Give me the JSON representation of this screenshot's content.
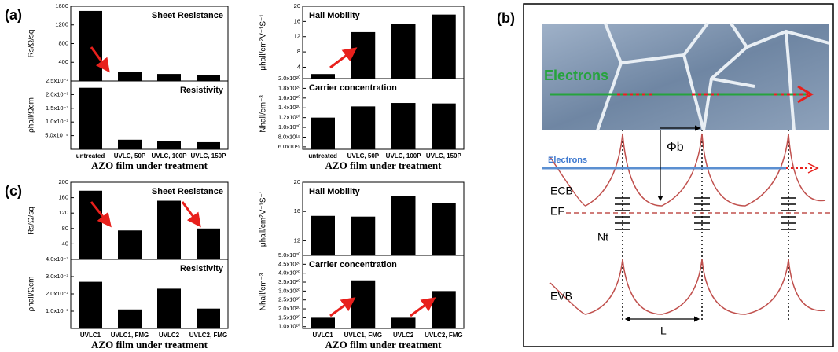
{
  "chart_data": [
    {
      "type": "bar",
      "panel": "(a)",
      "annotation": "Sheet Resistance",
      "ylabel": "Rs/Ω/sq",
      "color": "#000000",
      "categories": [
        null,
        null,
        null,
        null
      ],
      "values": [
        1500,
        190,
        150,
        130
      ],
      "ylim": [
        0,
        1600
      ],
      "yticks": [
        400,
        800,
        1200,
        1600
      ]
    },
    {
      "type": "bar",
      "annotation": "Resistivity",
      "ylabel": "ρhall/Ωcm",
      "xlabel": "AZO film under treatment",
      "color": "#000000",
      "categories": [
        "untreated",
        "UVLC, 50P",
        "UVLC, 100P",
        "UVLC, 150P"
      ],
      "values": [
        0.00225,
        0.00035,
        0.0003,
        0.00026
      ],
      "ylim": [
        0,
        0.0025
      ],
      "yticks": [
        {
          "value": 0.0005,
          "label": "5.0x10⁻⁴"
        },
        {
          "value": 0.001,
          "label": "1.0x10⁻³"
        },
        {
          "value": 0.0015,
          "label": "1.5x10⁻³"
        },
        {
          "value": 0.002,
          "label": "2.0x10⁻³"
        },
        {
          "value": 0.0025,
          "label": "2.5x10⁻³"
        }
      ]
    },
    {
      "type": "bar",
      "annotation": "Hall Mobility",
      "ylabel": "μhall/cm²V⁻¹S⁻¹",
      "color": "#000000",
      "categories": [
        null,
        null,
        null,
        null
      ],
      "values": [
        2.2,
        13.2,
        15.3,
        17.8
      ],
      "ylim": [
        1,
        20
      ],
      "yticks": [
        4,
        8,
        12,
        16,
        20
      ]
    },
    {
      "type": "bar",
      "annotation": "Carrier concentration",
      "ylabel": "Nhall/cm⁻³",
      "xlabel": "AZO film under treatment",
      "color": "#000000",
      "categories": [
        "untreated",
        "UVLC, 50P",
        "UVLC, 100P",
        "UVLC, 150P"
      ],
      "values": [
        1.2e+20,
        1.43e+20,
        1.5e+20,
        1.49e+20
      ],
      "ylim": [
        5.5e+19,
        2e+20
      ],
      "yticks": [
        {
          "value": 6e+19,
          "label": "6.0x10¹⁹"
        },
        {
          "value": 8e+19,
          "label": "8.0x10¹⁹"
        },
        {
          "value": 1e+20,
          "label": "1.0x10²⁰"
        },
        {
          "value": 1.2e+20,
          "label": "1.2x10²⁰"
        },
        {
          "value": 1.4e+20,
          "label": "1.4x10²⁰"
        },
        {
          "value": 1.6e+20,
          "label": "1.6x10²⁰"
        },
        {
          "value": 1.8e+20,
          "label": "1.8x10²⁰"
        },
        {
          "value": 2e+20,
          "label": "2.0x10²⁰"
        }
      ]
    },
    {
      "type": "bar",
      "panel": "(c)",
      "annotation": "Sheet Resistance",
      "ylabel": "Rs/Ω/sq",
      "color": "#000000",
      "categories": [
        null,
        null,
        null,
        null
      ],
      "values": [
        178,
        75,
        152,
        80
      ],
      "ylim": [
        0,
        200
      ],
      "yticks": [
        40,
        80,
        120,
        160,
        200
      ]
    },
    {
      "type": "bar",
      "annotation": "Resistivity",
      "ylabel": "ρhall/Ωcm",
      "xlabel": "AZO film under treatment",
      "color": "#000000",
      "categories": [
        "UVLC1",
        "UVLC1, FMG",
        "UVLC2",
        "UVLC2, FMG"
      ],
      "values": [
        0.0027,
        0.0011,
        0.0023,
        0.00115
      ],
      "ylim": [
        0,
        0.004
      ],
      "yticks": [
        {
          "value": 0.001,
          "label": "1.0x10⁻³"
        },
        {
          "value": 0.002,
          "label": "2.0x10⁻³"
        },
        {
          "value": 0.003,
          "label": "3.0x10⁻³"
        },
        {
          "value": 0.004,
          "label": "4.0x10⁻³"
        }
      ]
    },
    {
      "type": "bar",
      "annotation": "Hall Mobility",
      "ylabel": "μhall/cm²V⁻¹S⁻¹",
      "color": "#000000",
      "categories": [
        null,
        null,
        null,
        null
      ],
      "values": [
        15.4,
        15.3,
        18.1,
        17.2
      ],
      "ylim": [
        10,
        20
      ],
      "yticks": [
        12,
        16,
        20
      ]
    },
    {
      "type": "bar",
      "annotation": "Carrier concentration",
      "ylabel": "Nhall/cm⁻³",
      "xlabel": "AZO film under treatment",
      "color": "#000000",
      "categories": [
        "UVLC1",
        "UVLC1, FMG",
        "UVLC2",
        "UVLC2, FMG"
      ],
      "values": [
        1.5e+20,
        3.6e+20,
        1.5e+20,
        3e+20
      ],
      "ylim": [
        9e+19,
        5e+20
      ],
      "yticks": [
        {
          "value": 1e+20,
          "label": "1.0x10²⁰"
        },
        {
          "value": 1.5e+20,
          "label": "1.5x10²⁰"
        },
        {
          "value": 2e+20,
          "label": "2.0x10²⁰"
        },
        {
          "value": 2.5e+20,
          "label": "2.5x10²⁰"
        },
        {
          "value": 3e+20,
          "label": "3.0x10²⁰"
        },
        {
          "value": 3.5e+20,
          "label": "3.5x10²⁰"
        },
        {
          "value": 4e+20,
          "label": "4.0x10²⁰"
        },
        {
          "value": 4.5e+20,
          "label": "4.5x10²⁰"
        },
        {
          "value": 5e+20,
          "label": "5.0x10²⁰"
        }
      ]
    }
  ],
  "diagram": {
    "panel": "(b)",
    "electrons_grain": "Electrons",
    "barrier": "Φb",
    "electrons_band": "Electrons",
    "conduction_band": "ECB",
    "fermi_level": "EF",
    "traps": "Nt",
    "valence_band": "EVB",
    "grain_size": "L"
  }
}
